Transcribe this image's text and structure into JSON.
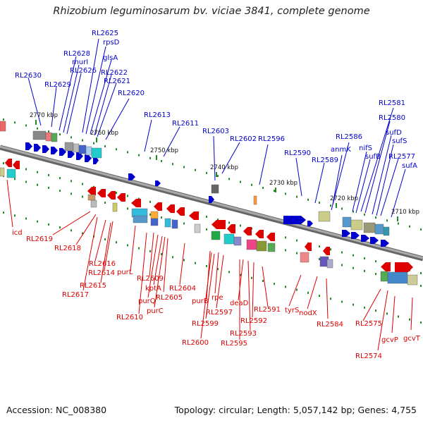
{
  "title": "Rhizobium leguminosarum bv. viciae 3841, complete genome",
  "footer": {
    "accession": "Accession: NC_008380",
    "summary": "Topology: circular; Length: 5,057,142 bp; Genes: 4,755"
  },
  "colors": {
    "upper": "#0000cc",
    "lower": "#dd0000",
    "backbone": "#888888",
    "tick": "#228822"
  },
  "kbp_ticks": [
    "2770 kbp",
    "2760 kbp",
    "2750 kbp",
    "2740 kbp",
    "2730 kbp",
    "2720 kbp",
    "2710 kbp"
  ],
  "upper_labels": [
    "RL2625",
    "rpsD",
    "RL2628",
    "murI",
    "glsA",
    "RL2626",
    "RL2622",
    "RL2630",
    "RL2621",
    "RL2629",
    "RL2620",
    "RL2613",
    "RL2611",
    "RL2603",
    "RL2602",
    "RL2596",
    "RL2590",
    "RL2589",
    "anmK",
    "RL2586",
    "RL2581",
    "RL2580",
    "sufD",
    "sufS",
    "nifS",
    "sufB",
    "RL2577",
    "sufA"
  ],
  "lower_labels": [
    "icd",
    "RL2619",
    "RL2618",
    "RL2616",
    "RL2614",
    "RL2615",
    "RL2617",
    "purL",
    "RL2609",
    "kptA",
    "RL2605",
    "purQ",
    "purC",
    "RL2610",
    "RL2604",
    "purB",
    "rpe",
    "RL2597",
    "RL2599",
    "RL2600",
    "deaD",
    "RL2592",
    "RL2593",
    "RL2595",
    "RL2591",
    "tyrS",
    "nodX",
    "RL2584",
    "RL2575",
    "RL2574",
    "gcvP",
    "gcvT"
  ]
}
